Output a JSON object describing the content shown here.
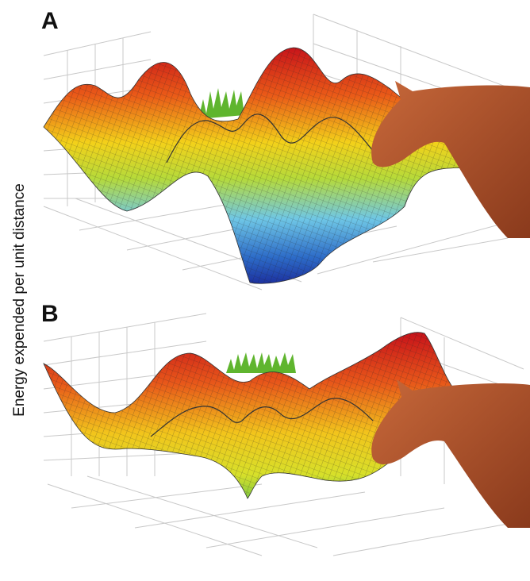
{
  "axis_label": "Energy expended per unit distance",
  "panels": [
    {
      "label": "A"
    },
    {
      "label": "B"
    }
  ]
}
